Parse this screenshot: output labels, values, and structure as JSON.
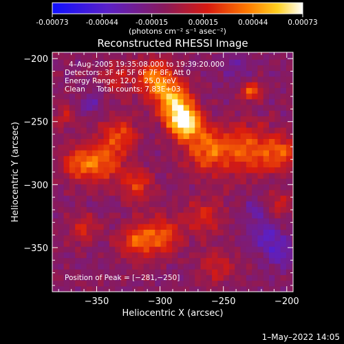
{
  "colorbar": {
    "ticks": [
      "-0.00073",
      "-0.00044",
      "-0.00015",
      "0.00015",
      "0.00044",
      "0.00073"
    ],
    "tick_values": [
      -0.00073,
      -0.00044,
      -0.00015,
      0.00015,
      0.00044,
      0.00073
    ],
    "range": [
      -0.00073,
      0.00073
    ],
    "units_label": "(photons cm⁻² s⁻¹ asec⁻²)"
  },
  "chart_data": {
    "type": "heatmap",
    "title": "Reconstructed RHESSI Image",
    "xlabel": "Heliocentric X (arcsec)",
    "ylabel": "Heliocentric Y (arcsec)",
    "xlim": [
      -385,
      -195
    ],
    "ylim": [
      -385,
      -195
    ],
    "x_ticks": [
      -350,
      -300,
      -250,
      -200
    ],
    "x_tick_labels": [
      "−350",
      "−300",
      "−250",
      "−200"
    ],
    "y_ticks": [
      -200,
      -250,
      -300,
      -350
    ],
    "y_tick_labels": [
      "−200",
      "−250",
      "−300",
      "−350"
    ],
    "colormap": "blue-purple-red-yellow-white",
    "background_level": -0.0001,
    "sources": [
      {
        "x": -281,
        "y": -250,
        "sigma": 9,
        "amp": 0.00085
      },
      {
        "x": -290,
        "y": -232,
        "sigma": 10,
        "amp": 0.0006
      },
      {
        "x": -305,
        "y": -215,
        "sigma": 10,
        "amp": 0.00048
      },
      {
        "x": -262,
        "y": -272,
        "sigma": 13,
        "amp": 0.00045
      },
      {
        "x": -230,
        "y": -272,
        "sigma": 14,
        "amp": 0.00038
      },
      {
        "x": -205,
        "y": -275,
        "sigma": 10,
        "amp": 0.00035
      },
      {
        "x": -228,
        "y": -226,
        "sigma": 5,
        "amp": 0.00048
      },
      {
        "x": -345,
        "y": -282,
        "sigma": 11,
        "amp": 0.00042
      },
      {
        "x": -365,
        "y": -283,
        "sigma": 9,
        "amp": 0.00038
      },
      {
        "x": -332,
        "y": -260,
        "sigma": 10,
        "amp": 0.00035
      },
      {
        "x": -318,
        "y": -300,
        "sigma": 9,
        "amp": 0.00032
      },
      {
        "x": -300,
        "y": -340,
        "sigma": 11,
        "amp": 0.00042
      },
      {
        "x": -320,
        "y": -345,
        "sigma": 9,
        "amp": 0.00035
      },
      {
        "x": -360,
        "y": -335,
        "sigma": 8,
        "amp": 0.00025
      },
      {
        "x": -265,
        "y": -325,
        "sigma": 10,
        "amp": 0.00028
      },
      {
        "x": -255,
        "y": -365,
        "sigma": 9,
        "amp": 0.00024
      },
      {
        "x": -205,
        "y": -315,
        "sigma": 7,
        "amp": 0.00022
      },
      {
        "x": -335,
        "y": -215,
        "sigma": 8,
        "amp": 0.00022
      },
      {
        "x": -375,
        "y": -245,
        "sigma": 7,
        "amp": 0.0002
      },
      {
        "x": -215,
        "y": -340,
        "sigma": 8,
        "amp": -0.00028
      },
      {
        "x": -205,
        "y": -355,
        "sigma": 8,
        "amp": -0.00025
      },
      {
        "x": -225,
        "y": -320,
        "sigma": 6,
        "amp": -0.0002
      },
      {
        "x": -355,
        "y": -235,
        "sigma": 6,
        "amp": -0.0002
      },
      {
        "x": -240,
        "y": -205,
        "sigma": 8,
        "amp": -0.00015
      }
    ],
    "peak_marker": {
      "x": -281,
      "y": -250
    },
    "annotations": {
      "time": "4–Aug–2005 19:35:08.000 to 19:39:20.000",
      "detectors": "Detectors: 3F 4F 5F 6F 7F 8F, Att 0",
      "energy": "Energy Range: 12.0 – 25.0 keV",
      "algorithm": "Clean     Total counts: 7.83E+03",
      "peak": "Position of Peak = [−281,−250]"
    }
  },
  "footer": {
    "timestamp": "1–May–2022 14:05"
  }
}
